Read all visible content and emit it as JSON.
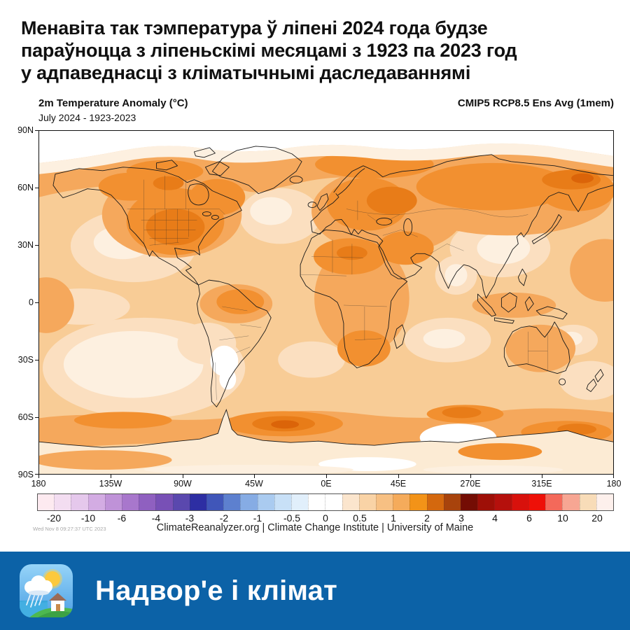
{
  "headline": {
    "line1": "Менавіта так тэмпература ў ліпені 2024 года будзе",
    "line2": "параўноцца з ліпеньскімі месяцамі з 1923 па 2023 год",
    "line3": "у адпаведнасці з кліматычнымі даследаваннямі"
  },
  "chart": {
    "title_left": "2m Temperature Anomaly (°C)",
    "subtitle_left": "July 2024 - 1923-2023",
    "title_right": "CMIP5 RCP8.5 Ens Avg (1mem)",
    "lat_ticks": [
      "90N",
      "60N",
      "30N",
      "0",
      "30S",
      "60S",
      "90S"
    ],
    "lon_ticks": [
      "180",
      "135W",
      "90W",
      "45W",
      "0E",
      "45E",
      "270E",
      "315E",
      "180"
    ],
    "colorbar_labels": [
      "-20",
      "-10",
      "-6",
      "-4",
      "-3",
      "-2",
      "-1",
      "-0.5",
      "0",
      "0.5",
      "1",
      "2",
      "3",
      "4",
      "6",
      "10",
      "20"
    ],
    "timestamp": "Wed Nov 8 09:27:37 UTC 2023",
    "attribution": "ClimateReanalyzer.org | Climate Change Institute | University of Maine"
  },
  "colorbar": {
    "cell_colors": [
      "#fdeaf0",
      "#f3ddf1",
      "#e5c8ec",
      "#d3ace3",
      "#bf92d8",
      "#a877cc",
      "#8f60c0",
      "#7850b6",
      "#5a48ae",
      "#2d2ea3",
      "#4056b9",
      "#5d80cf",
      "#86ace4",
      "#aacbf0",
      "#c8e0f7",
      "#e1effb",
      "#ffffff",
      "#ffffff",
      "#fbe5cd",
      "#f9d3a6",
      "#f7c083",
      "#f5ab5b",
      "#f39318",
      "#d4680e",
      "#a8430c",
      "#740d04",
      "#9e0f07",
      "#b5100c",
      "#d8110c",
      "#ee1008",
      "#f4695a",
      "#f7a693",
      "#f8dcb8",
      "#fdf0ec"
    ]
  },
  "palette": {
    "map_base": "#f8cc96",
    "map_pale": "#fbdfc0",
    "map_near_white": "#fdf0e0",
    "map_medium": "#f5a85c",
    "map_strong": "#f29030",
    "map_dark": "#e87c18",
    "map_darkest": "#db6409",
    "footer_blue": "#0c62a7"
  },
  "chart_data": {
    "type": "heatmap",
    "title": "2m Temperature Anomaly (°C)",
    "subtitle": "July 2024 - 1923-2023",
    "model_label": "CMIP5 RCP8.5 Ens Avg (1mem)",
    "units": "°C",
    "projection": "equirectangular world map, 90N-90S",
    "x_ticks": [
      "180",
      "135W",
      "90W",
      "45W",
      "0E",
      "45E",
      "270E",
      "315E",
      "180"
    ],
    "y_ticks": [
      "90N",
      "60N",
      "30N",
      "0",
      "30S",
      "60S",
      "90S"
    ],
    "colorbar_ticks": [
      -20,
      -10,
      -6,
      -4,
      -3,
      -2,
      -1,
      -0.5,
      0,
      0.5,
      1,
      2,
      3,
      4,
      6,
      10,
      20
    ],
    "legend_position": "bottom",
    "grid": false,
    "region_estimates": [
      {
        "region": "Arctic coast band 70-80N",
        "anomaly_c": 2
      },
      {
        "region": "North America (US/Canada interior)",
        "anomaly_c": 2
      },
      {
        "region": "Northeast Pacific",
        "anomaly_c": 0.5
      },
      {
        "region": "North Atlantic south of Greenland",
        "anomaly_c": 0.5
      },
      {
        "region": "Europe / Eastern Europe",
        "anomaly_c": 2.5
      },
      {
        "region": "Siberia",
        "anomaly_c": 2
      },
      {
        "region": "Northeast Siberia hotspot",
        "anomaly_c": 3
      },
      {
        "region": "Central Asia / Mongolia",
        "anomaly_c": 0.5
      },
      {
        "region": "India",
        "anomaly_c": 0.5
      },
      {
        "region": "Sahara / Middle East",
        "anomaly_c": 2
      },
      {
        "region": "Southern Africa",
        "anomaly_c": 2
      },
      {
        "region": "Northern South America",
        "anomaly_c": 1.5
      },
      {
        "region": "Central Argentina (neutral patch)",
        "anomaly_c": 0
      },
      {
        "region": "Southeast Pacific",
        "anomaly_c": 0.5
      },
      {
        "region": "Australia",
        "anomaly_c": 1
      },
      {
        "region": "Southern Ocean 55-65S band",
        "anomaly_c": 2
      },
      {
        "region": "Southern Ocean south of Atlantic hotspot",
        "anomaly_c": 3
      },
      {
        "region": "Antarctic coast 45-90E (neutral)",
        "anomaly_c": 0
      },
      {
        "region": "Antarctica interior",
        "anomaly_c": 0.5
      }
    ],
    "no_data_band": "white strip poleward of ~83N"
  },
  "footer": {
    "title": "Надвор'е і клімат",
    "icon": "weather-app-icon",
    "bg_color": "#0c62a7"
  }
}
